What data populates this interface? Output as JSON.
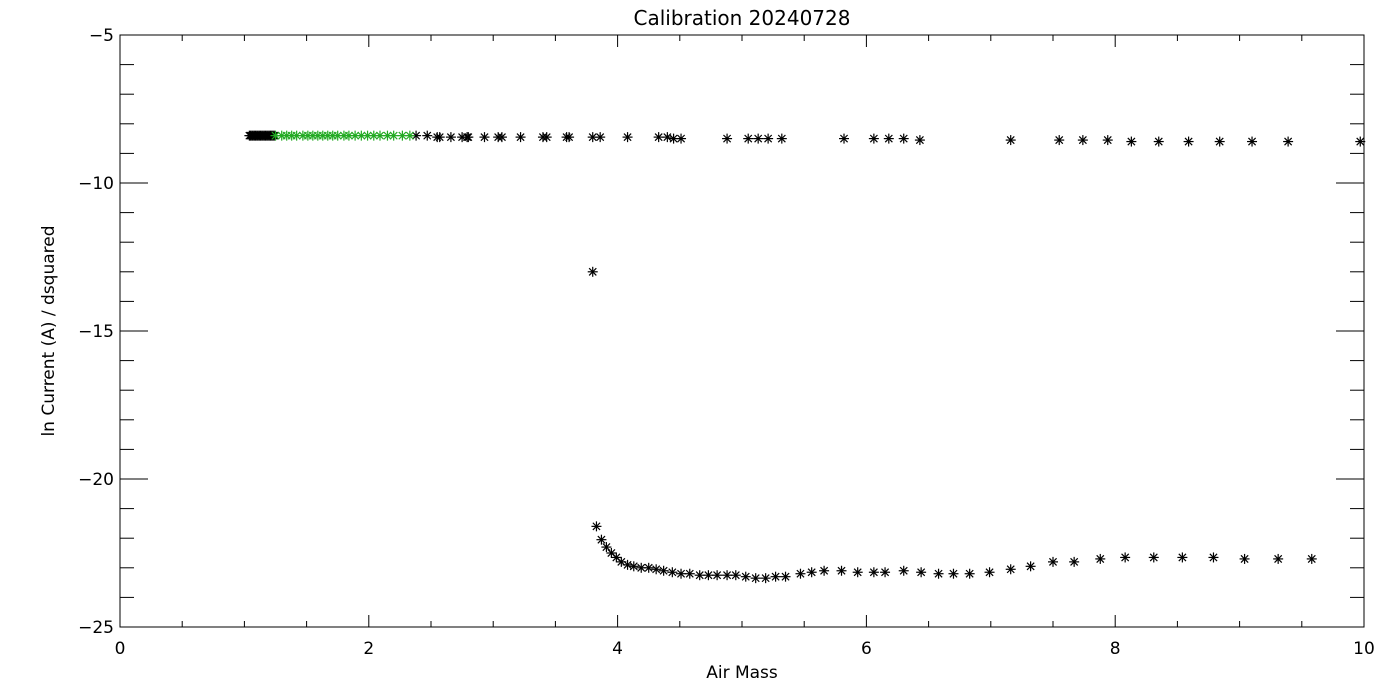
{
  "chart_data": {
    "type": "scatter",
    "title": "Calibration 20240728",
    "xlabel": "Air Mass",
    "ylabel": "ln Current (A) / dsquared",
    "xlim": [
      0,
      10
    ],
    "ylim": [
      -25,
      -5
    ],
    "x_ticks": [
      0,
      2,
      4,
      6,
      8,
      10
    ],
    "x_tick_labels": [
      "0",
      "2",
      "4",
      "6",
      "8",
      "10"
    ],
    "y_ticks": [
      -5,
      -10,
      -15,
      -20,
      -25
    ],
    "y_tick_labels": [
      "−5",
      "−10",
      "−15",
      "−20",
      "−25"
    ],
    "grid": false,
    "marker": "*",
    "series": [
      {
        "color": "#000000",
        "x": [
          1.04,
          1.05,
          1.06,
          1.07,
          1.08,
          1.09,
          1.1,
          1.11,
          1.12,
          1.13,
          1.14,
          1.15,
          1.16,
          1.17,
          1.18,
          1.19,
          1.2,
          1.21,
          1.22,
          1.23,
          1.24,
          2.38,
          2.47,
          2.55,
          2.57,
          2.66,
          2.75,
          2.79,
          2.8,
          2.93,
          3.04,
          3.07,
          3.22,
          3.4,
          3.43,
          3.59,
          3.61,
          3.8,
          3.86,
          4.08,
          4.33,
          4.4,
          4.45,
          4.51,
          4.88,
          5.05,
          5.13,
          5.21,
          5.32,
          5.82,
          6.06,
          6.18,
          6.3,
          6.43,
          7.16,
          7.55,
          7.74,
          7.94,
          8.13,
          8.35,
          8.59,
          8.84,
          9.1,
          9.39,
          9.97
        ],
        "y": [
          -8.4,
          -8.4,
          -8.4,
          -8.4,
          -8.4,
          -8.4,
          -8.4,
          -8.4,
          -8.4,
          -8.4,
          -8.4,
          -8.4,
          -8.4,
          -8.4,
          -8.4,
          -8.4,
          -8.4,
          -8.4,
          -8.4,
          -8.4,
          -8.4,
          -8.4,
          -8.4,
          -8.45,
          -8.45,
          -8.45,
          -8.45,
          -8.45,
          -8.45,
          -8.45,
          -8.45,
          -8.45,
          -8.45,
          -8.45,
          -8.45,
          -8.45,
          -8.45,
          -8.45,
          -8.45,
          -8.45,
          -8.45,
          -8.45,
          -8.5,
          -8.5,
          -8.5,
          -8.5,
          -8.5,
          -8.5,
          -8.5,
          -8.5,
          -8.5,
          -8.5,
          -8.5,
          -8.55,
          -8.55,
          -8.55,
          -8.55,
          -8.55,
          -8.6,
          -8.6,
          -8.6,
          -8.6,
          -8.6,
          -8.6,
          -8.6
        ]
      },
      {
        "color": "#000000",
        "x": [
          3.8
        ],
        "y": [
          -13.0
        ]
      },
      {
        "color": "#000000",
        "x": [
          3.83,
          3.87,
          3.91,
          3.95,
          3.99,
          4.03,
          4.08,
          4.13,
          4.19,
          4.25,
          4.31,
          4.37,
          4.44,
          4.51,
          4.58,
          4.66,
          4.73,
          4.8,
          4.88,
          4.95,
          5.03,
          5.11,
          5.19,
          5.27,
          5.35,
          5.47,
          5.56,
          5.66,
          5.8,
          5.93,
          6.06,
          6.15,
          6.3,
          6.44,
          6.58,
          6.7,
          6.83,
          6.99,
          7.16,
          7.32,
          7.5,
          7.67,
          7.88,
          8.08,
          8.31,
          8.54,
          8.79,
          9.04,
          9.31,
          9.58
        ],
        "y": [
          -21.6,
          -22.05,
          -22.3,
          -22.5,
          -22.65,
          -22.8,
          -22.9,
          -22.95,
          -23.0,
          -23.0,
          -23.05,
          -23.1,
          -23.15,
          -23.2,
          -23.2,
          -23.25,
          -23.25,
          -23.25,
          -23.25,
          -23.25,
          -23.3,
          -23.35,
          -23.35,
          -23.3,
          -23.3,
          -23.2,
          -23.15,
          -23.1,
          -23.1,
          -23.15,
          -23.15,
          -23.15,
          -23.1,
          -23.15,
          -23.2,
          -23.2,
          -23.2,
          -23.15,
          -23.05,
          -22.95,
          -22.8,
          -22.8,
          -22.7,
          -22.65,
          -22.65,
          -22.65,
          -22.65,
          -22.7,
          -22.7,
          -22.7
        ]
      },
      {
        "color": "#22aa22",
        "x": [
          1.25,
          1.3,
          1.34,
          1.38,
          1.42,
          1.47,
          1.51,
          1.55,
          1.59,
          1.63,
          1.67,
          1.71,
          1.75,
          1.8,
          1.84,
          1.89,
          1.94,
          1.99,
          2.04,
          2.09,
          2.15,
          2.2,
          2.27,
          2.33
        ],
        "y": [
          -8.4,
          -8.4,
          -8.4,
          -8.4,
          -8.4,
          -8.4,
          -8.4,
          -8.4,
          -8.4,
          -8.4,
          -8.4,
          -8.4,
          -8.4,
          -8.4,
          -8.4,
          -8.4,
          -8.4,
          -8.4,
          -8.4,
          -8.4,
          -8.4,
          -8.4,
          -8.4,
          -8.4
        ]
      }
    ]
  }
}
